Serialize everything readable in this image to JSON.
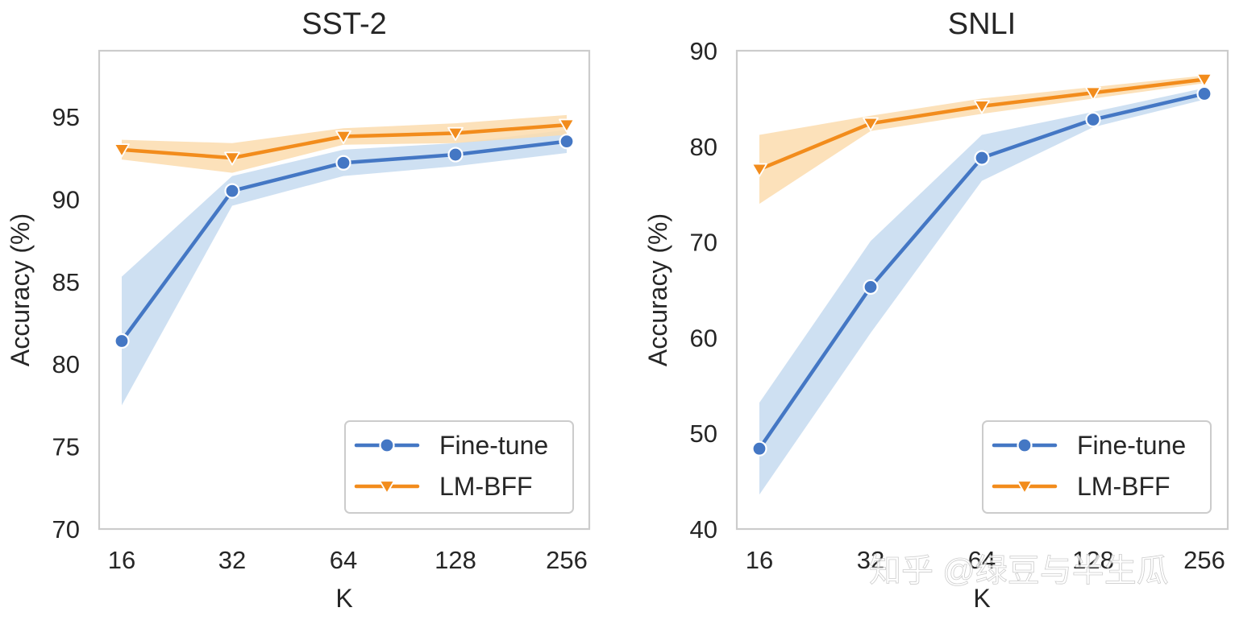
{
  "watermark": "知乎 @绿豆与半生瓜",
  "chart_data": [
    {
      "type": "line",
      "title": "SST-2",
      "xlabel": "K",
      "ylabel": "Accuracy (%)",
      "categories": [
        "16",
        "32",
        "64",
        "128",
        "256"
      ],
      "ylim": [
        70,
        99
      ],
      "yticks": [
        70,
        75,
        80,
        85,
        90,
        95
      ],
      "grid": false,
      "legend_position": "bottom-right",
      "series": [
        {
          "name": "Fine-tune",
          "color": "#4477c4",
          "band_color": "#c6daf0",
          "marker": "circle",
          "values": [
            81.4,
            90.5,
            92.2,
            92.7,
            93.5
          ],
          "lower": [
            77.5,
            89.6,
            91.4,
            92.0,
            92.8
          ],
          "upper": [
            85.3,
            91.4,
            93.0,
            93.4,
            94.2
          ]
        },
        {
          "name": "LM-BFF",
          "color": "#f28c1c",
          "band_color": "#fbdcae",
          "marker": "triangle-down",
          "values": [
            93.0,
            92.5,
            93.8,
            94.0,
            94.5
          ],
          "lower": [
            92.4,
            91.6,
            93.3,
            93.4,
            93.9
          ],
          "upper": [
            93.6,
            93.4,
            94.3,
            94.6,
            95.1
          ]
        }
      ]
    },
    {
      "type": "line",
      "title": "SNLI",
      "xlabel": "K",
      "ylabel": "Accuracy (%)",
      "categories": [
        "16",
        "32",
        "64",
        "128",
        "256"
      ],
      "ylim": [
        40,
        90
      ],
      "yticks": [
        40,
        50,
        60,
        70,
        80,
        90
      ],
      "grid": false,
      "legend_position": "bottom-right",
      "series": [
        {
          "name": "Fine-tune",
          "color": "#4477c4",
          "band_color": "#c6daf0",
          "marker": "circle",
          "values": [
            48.4,
            65.3,
            78.8,
            82.8,
            85.5
          ],
          "lower": [
            43.6,
            60.5,
            76.4,
            82.0,
            84.9
          ],
          "upper": [
            53.2,
            70.1,
            81.2,
            83.6,
            86.1
          ]
        },
        {
          "name": "LM-BFF",
          "color": "#f28c1c",
          "band_color": "#fbdcae",
          "marker": "triangle-down",
          "values": [
            77.6,
            82.4,
            84.2,
            85.6,
            87.0
          ],
          "lower": [
            74.0,
            81.6,
            83.4,
            85.0,
            86.6
          ],
          "upper": [
            81.2,
            83.2,
            85.0,
            86.2,
            87.4
          ]
        }
      ]
    }
  ]
}
